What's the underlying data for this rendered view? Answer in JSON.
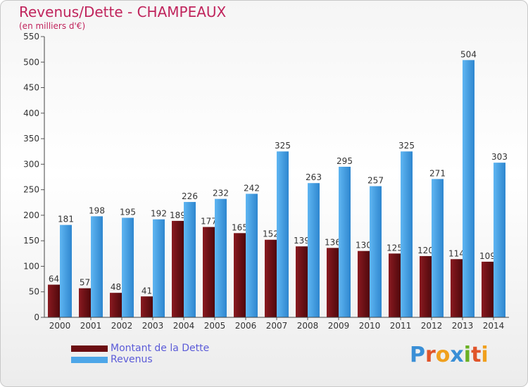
{
  "chart_data": {
    "type": "bar",
    "title": "Revenus/Dette - CHAMPEAUX",
    "subtitle": "(en milliers d'€)",
    "categories": [
      "2000",
      "2001",
      "2002",
      "2003",
      "2004",
      "2005",
      "2006",
      "2007",
      "2008",
      "2009",
      "2010",
      "2011",
      "2012",
      "2013",
      "2014"
    ],
    "series": [
      {
        "name": "Montant de la Dette",
        "color": "#6b0d12",
        "values": [
          64,
          57,
          48,
          41,
          189,
          177,
          165,
          152,
          139,
          136,
          130,
          125,
          120,
          114,
          109
        ]
      },
      {
        "name": "Revenus",
        "color": "#4da6e8",
        "values": [
          181,
          198,
          195,
          192,
          226,
          232,
          242,
          325,
          263,
          295,
          257,
          325,
          271,
          504,
          303
        ]
      }
    ],
    "ylim": [
      0,
      550
    ],
    "yticks": [
      0,
      50,
      100,
      150,
      200,
      250,
      300,
      350,
      400,
      450,
      500,
      550
    ],
    "grid": false,
    "legend_position": "bottom-left"
  },
  "logo": {
    "text": "Proxiti",
    "colors": [
      "#3a8fd6",
      "#e0542a",
      "#f0a01e",
      "#3a8fd6",
      "#6ab023",
      "#e0542a",
      "#f0a01e"
    ]
  }
}
